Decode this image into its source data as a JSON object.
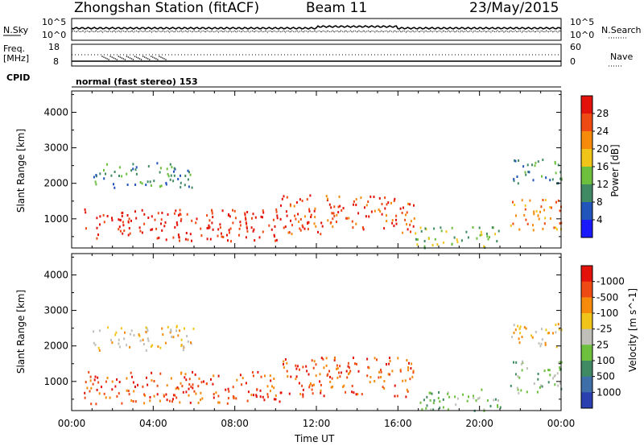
{
  "header": {
    "station": "Zhongshan Station (fitACF)",
    "beam": "Beam 11",
    "date": "23/May/2015"
  },
  "top_panel": {
    "left_label": "N.Sky",
    "left_top": "10^5",
    "left_bottom": "10^0",
    "right_top": "10^5",
    "right_bottom": "10^0",
    "right_label": "N.Search"
  },
  "freq_panel": {
    "left_label_1": "Freq.",
    "left_label_2": "[MHz]",
    "left_top": "18",
    "left_bottom": "8",
    "right_top": "60",
    "right_bottom": "0",
    "right_label": "Nave"
  },
  "cpid": {
    "label": "CPID",
    "value": "normal (fast stereo) 153"
  },
  "chart_data": [
    {
      "type": "heatmap",
      "title": "",
      "xlabel": "Time UT",
      "ylabel": "Slant Range [km]",
      "x_ticks": [
        "00:00",
        "04:00",
        "08:00",
        "12:00",
        "16:00",
        "20:00",
        "00:00"
      ],
      "y_ticks": [
        1000,
        2000,
        3000,
        4000
      ],
      "xlim_hours": [
        0,
        24
      ],
      "ylim_km": [
        180,
        4600
      ],
      "colorbar": {
        "label": "Power [dB]",
        "ticks": [
          "4",
          "8",
          "12",
          "16",
          "20",
          "24",
          "28"
        ],
        "range": [
          0,
          30
        ],
        "colors": [
          "#1a1aff",
          "#2255bb",
          "#3f8a63",
          "#6dbf3e",
          "#f0c419",
          "#f58a0b",
          "#f04a14",
          "#e3120b"
        ]
      },
      "features": [
        {
          "hours": [
            0.5,
            10.2
          ],
          "range_km": [
            400,
            1300
          ],
          "level": "28"
        },
        {
          "hours": [
            10.2,
            16.8
          ],
          "range_km": [
            600,
            1700
          ],
          "level": "24"
        },
        {
          "hours": [
            16.8,
            21.0
          ],
          "range_km": [
            200,
            800
          ],
          "level": "12"
        },
        {
          "hours": [
            21.5,
            24.0
          ],
          "range_km": [
            700,
            1600
          ],
          "level": "20"
        },
        {
          "hours": [
            1.0,
            6.0
          ],
          "range_km": [
            1900,
            2600
          ],
          "level": "8"
        },
        {
          "hours": [
            21.5,
            24.0
          ],
          "range_km": [
            2000,
            2700
          ],
          "level": "8"
        }
      ]
    },
    {
      "type": "heatmap",
      "title": "",
      "xlabel": "Time UT",
      "ylabel": "Slant Range [km]",
      "x_ticks": [
        "00:00",
        "04:00",
        "08:00",
        "12:00",
        "16:00",
        "20:00",
        "00:00"
      ],
      "y_ticks": [
        1000,
        2000,
        3000,
        4000
      ],
      "xlim_hours": [
        0,
        24
      ],
      "ylim_km": [
        180,
        4600
      ],
      "colorbar": {
        "label": "Velocity [m s^-1]",
        "ticks": [
          "1000",
          "500",
          "100",
          "25",
          "-25",
          "-100",
          "-500",
          "-1000"
        ],
        "colors": [
          "#2a3fb0",
          "#3f6fa8",
          "#3f8a63",
          "#6dbf3e",
          "#c0c0b8",
          "#f0c419",
          "#f58a0b",
          "#f04a14",
          "#e3120b"
        ]
      },
      "features": [
        {
          "hours": [
            0.5,
            10.2
          ],
          "range_km": [
            400,
            1300
          ],
          "level": "-500"
        },
        {
          "hours": [
            10.2,
            16.8
          ],
          "range_km": [
            600,
            1700
          ],
          "level": "-500"
        },
        {
          "hours": [
            16.8,
            21.0
          ],
          "range_km": [
            200,
            800
          ],
          "level": "100"
        },
        {
          "hours": [
            21.5,
            24.0
          ],
          "range_km": [
            700,
            1600
          ],
          "level": "100"
        },
        {
          "hours": [
            1.0,
            6.0
          ],
          "range_km": [
            1900,
            2600
          ],
          "level": "-25"
        },
        {
          "hours": [
            21.5,
            24.0
          ],
          "range_km": [
            2000,
            2700
          ],
          "level": "-25"
        }
      ]
    }
  ]
}
